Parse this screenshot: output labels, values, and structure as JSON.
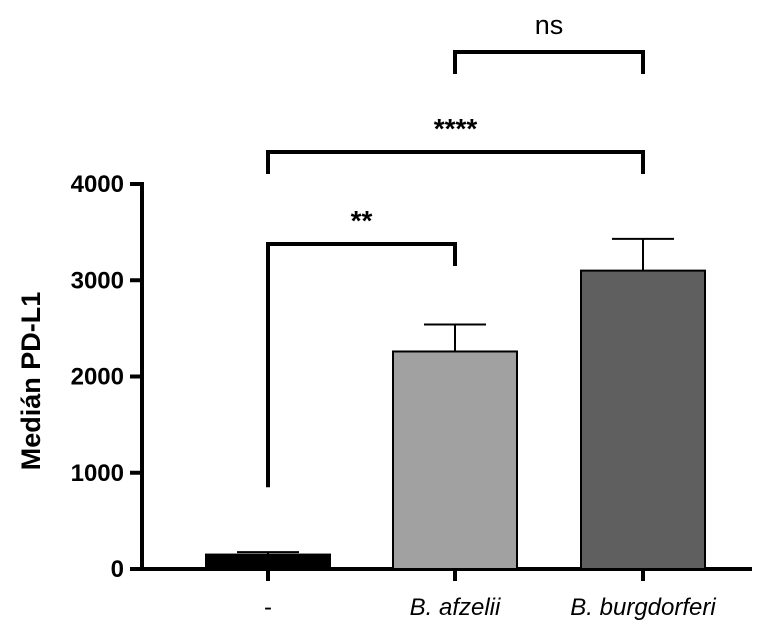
{
  "chart_data": {
    "type": "bar",
    "title": "",
    "xlabel": "",
    "ylabel": "Medián PD-L1",
    "ylim": [
      0,
      4000
    ],
    "yticks": [
      0,
      1000,
      2000,
      3000,
      4000
    ],
    "categories": [
      "-",
      "B. afzelii",
      "B. burgdorferi"
    ],
    "category_italic": [
      false,
      true,
      true
    ],
    "values": [
      150,
      2260,
      3100
    ],
    "errors": [
      25,
      280,
      330
    ],
    "bar_colors": [
      "#000000",
      "#a1a1a1",
      "#5f5f5f"
    ],
    "significance": [
      {
        "from": 0,
        "to": 1,
        "label": "**",
        "level": 1,
        "left_drop": 850
      },
      {
        "from": 0,
        "to": 2,
        "label": "****",
        "level": 2
      },
      {
        "from": 1,
        "to": 2,
        "label": "ns",
        "level": 3
      }
    ],
    "grid": false,
    "legend": "none"
  }
}
